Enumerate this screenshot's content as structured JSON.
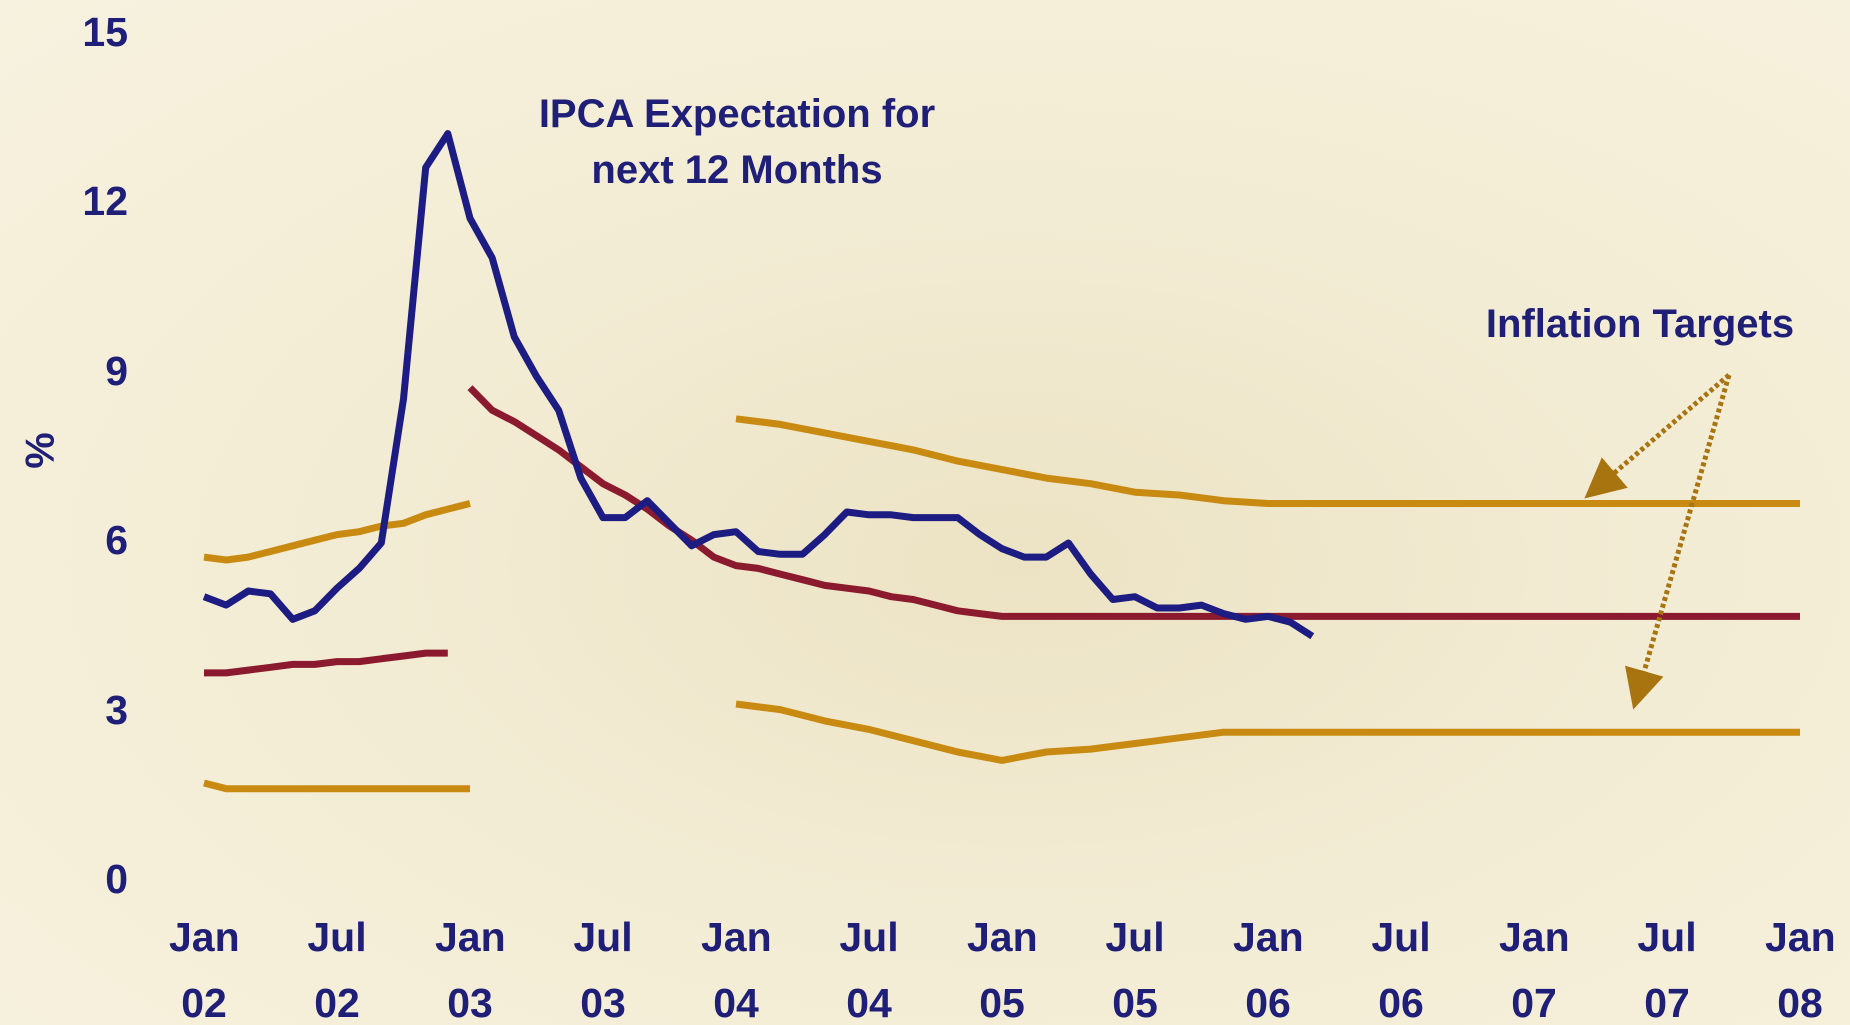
{
  "chart_data": {
    "type": "line",
    "ylabel": "%",
    "annotations": [
      "IPCA Expectation for next 12 Months",
      "Inflation Targets"
    ],
    "ylim": [
      0,
      15
    ],
    "yticks": [
      0,
      3,
      6,
      9,
      12,
      15
    ],
    "xlim": [
      "2002-01",
      "2008-01"
    ],
    "xticks": [
      {
        "value": "2002-01",
        "label": "Jan 02"
      },
      {
        "value": "2002-07",
        "label": "Jul 02"
      },
      {
        "value": "2003-01",
        "label": "Jan 03"
      },
      {
        "value": "2003-07",
        "label": "Jul 03"
      },
      {
        "value": "2004-01",
        "label": "Jan 04"
      },
      {
        "value": "2004-07",
        "label": "Jul 04"
      },
      {
        "value": "2005-01",
        "label": "Jan 05"
      },
      {
        "value": "2005-07",
        "label": "Jul 05"
      },
      {
        "value": "2006-01",
        "label": "Jan 06"
      },
      {
        "value": "2006-07",
        "label": "Jul 06"
      },
      {
        "value": "2007-01",
        "label": "Jan 07"
      },
      {
        "value": "2007-07",
        "label": "Jul 07"
      },
      {
        "value": "2008-01",
        "label": "Jan 08"
      }
    ],
    "series": [
      {
        "color": "#8b1a2e",
        "x": [
          "2002-01",
          "2002-02",
          "2002-03",
          "2002-04",
          "2002-05",
          "2002-06",
          "2002-07",
          "2002-08",
          "2002-09",
          "2002-10",
          "2002-11",
          "2002-12"
        ],
        "values": [
          3.65,
          3.65,
          3.7,
          3.75,
          3.8,
          3.8,
          3.85,
          3.85,
          3.9,
          3.95,
          4.0,
          4.0
        ]
      },
      {
        "color": "#8b1a2e",
        "x": [
          "2003-01",
          "2003-02",
          "2003-03",
          "2003-04",
          "2003-05",
          "2003-06",
          "2003-07",
          "2003-08",
          "2003-09",
          "2003-10",
          "2003-11",
          "2003-12",
          "2004-01",
          "2004-02",
          "2004-03",
          "2004-04",
          "2004-05",
          "2004-06",
          "2004-07",
          "2004-08",
          "2004-09",
          "2004-10",
          "2004-11",
          "2004-12",
          "2005-01",
          "2008-01"
        ],
        "values": [
          8.7,
          8.3,
          8.1,
          7.85,
          7.6,
          7.3,
          7.0,
          6.8,
          6.55,
          6.25,
          6.0,
          5.7,
          5.55,
          5.5,
          5.4,
          5.3,
          5.2,
          5.15,
          5.1,
          5.0,
          4.95,
          4.85,
          4.75,
          4.7,
          4.65,
          4.65
        ]
      },
      {
        "color": "#c98a12",
        "x": [
          "2002-01",
          "2002-02",
          "2002-03",
          "2002-04",
          "2002-05",
          "2002-06",
          "2002-07",
          "2002-08",
          "2002-09",
          "2002-10",
          "2002-11",
          "2002-12",
          "2003-01"
        ],
        "values": [
          5.7,
          5.65,
          5.7,
          5.8,
          5.9,
          6.0,
          6.1,
          6.15,
          6.25,
          6.3,
          6.45,
          6.55,
          6.65
        ]
      },
      {
        "color": "#c98a12",
        "x": [
          "2002-01",
          "2002-02",
          "2003-01"
        ],
        "values": [
          1.7,
          1.6,
          1.6
        ]
      },
      {
        "color": "#c98a12",
        "x": [
          "2004-01",
          "2004-03",
          "2004-05",
          "2004-07",
          "2004-09",
          "2004-11",
          "2005-01",
          "2005-03",
          "2005-05",
          "2005-07",
          "2005-09",
          "2005-11",
          "2006-01",
          "2008-01"
        ],
        "values": [
          8.15,
          8.05,
          7.9,
          7.75,
          7.6,
          7.4,
          7.25,
          7.1,
          7.0,
          6.85,
          6.8,
          6.7,
          6.65,
          6.65
        ]
      },
      {
        "color": "#c98a12",
        "x": [
          "2004-01",
          "2004-03",
          "2004-05",
          "2004-07",
          "2004-09",
          "2004-11",
          "2005-01",
          "2005-03",
          "2005-05",
          "2005-07",
          "2005-09",
          "2005-11",
          "2006-01",
          "2008-01"
        ],
        "values": [
          3.1,
          3.0,
          2.8,
          2.65,
          2.45,
          2.25,
          2.1,
          2.25,
          2.3,
          2.4,
          2.5,
          2.6,
          2.6,
          2.6
        ]
      },
      {
        "color": "#1c1c82",
        "x": [
          "2002-01",
          "2002-02",
          "2002-03",
          "2002-04",
          "2002-05",
          "2002-06",
          "2002-07",
          "2002-08",
          "2002-09",
          "2002-10",
          "2002-11",
          "2002-12",
          "2003-01",
          "2003-02",
          "2003-03",
          "2003-04",
          "2003-05",
          "2003-06",
          "2003-07",
          "2003-08",
          "2003-09",
          "2003-10",
          "2003-11",
          "2003-12",
          "2004-01",
          "2004-02",
          "2004-03",
          "2004-04",
          "2004-05",
          "2004-06",
          "2004-07",
          "2004-08",
          "2004-09",
          "2004-10",
          "2004-11",
          "2004-12",
          "2005-01",
          "2005-02",
          "2005-03",
          "2005-04",
          "2005-05",
          "2005-06",
          "2005-07",
          "2005-08",
          "2005-09",
          "2005-10",
          "2005-11",
          "2005-12",
          "2006-01",
          "2006-02",
          "2006-03"
        ],
        "values": [
          5.0,
          4.85,
          5.1,
          5.05,
          4.6,
          4.75,
          5.15,
          5.5,
          5.95,
          8.5,
          12.6,
          13.2,
          11.7,
          11.0,
          9.6,
          8.9,
          8.3,
          7.1,
          6.4,
          6.4,
          6.7,
          6.3,
          5.9,
          6.1,
          6.15,
          5.8,
          5.75,
          5.75,
          6.1,
          6.5,
          6.45,
          6.45,
          6.4,
          6.4,
          6.4,
          6.1,
          5.85,
          5.7,
          5.7,
          5.95,
          5.4,
          4.95,
          5.0,
          4.8,
          4.8,
          4.85,
          4.7,
          4.6,
          4.65,
          4.55,
          4.3
        ]
      }
    ]
  }
}
